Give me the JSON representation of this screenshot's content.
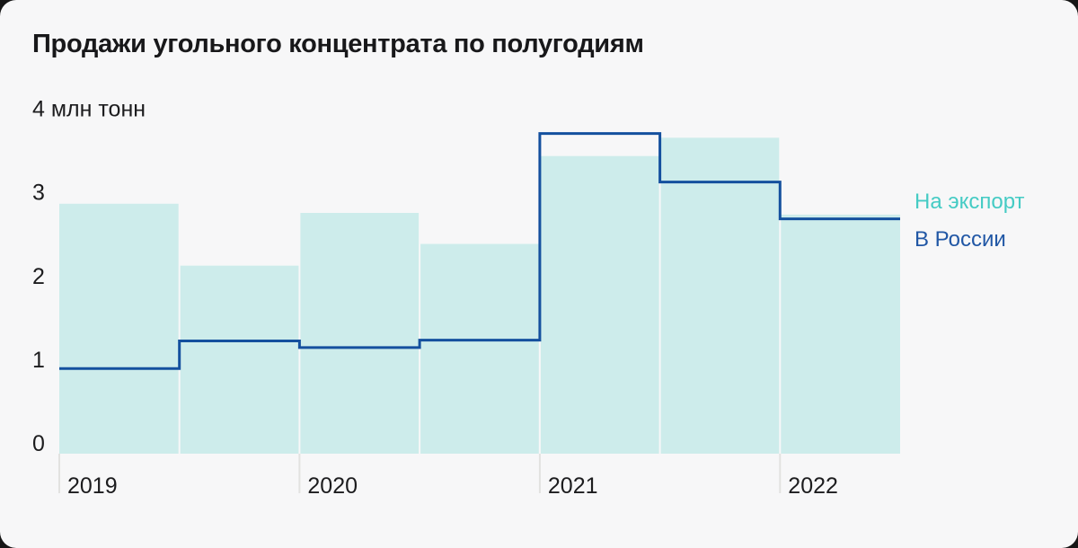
{
  "card": {
    "background": "#f7f7f8"
  },
  "legend": {
    "items": [
      {
        "label": "На экспорт",
        "color": "#45cbc4"
      },
      {
        "label": "В России",
        "color": "#2157a5"
      }
    ]
  },
  "chart_data": {
    "type": "combo",
    "title": "Продажи угольного концентрата по полугодиям",
    "unit_axis_label": "4 млн тонн",
    "ylabel": "млн тонн",
    "ylim": [
      0,
      4
    ],
    "y_ticks": [
      0,
      1,
      2,
      3
    ],
    "x_tick_labels": [
      "2019",
      "2020",
      "2021",
      "2022"
    ],
    "categories": [
      "2019 1-е полугодие",
      "2019 2-е полугодие",
      "2020 1-е полугодие",
      "2020 2-е полугодие",
      "2021 1-е полугодие",
      "2021 2-е полугодие",
      "2022 1-е полугодие"
    ],
    "series": [
      {
        "name": "На экспорт",
        "type": "bar",
        "fill": "#cdeceb",
        "values": [
          2.87,
          2.13,
          2.76,
          2.39,
          3.44,
          3.66,
          2.74
        ]
      },
      {
        "name": "В России",
        "type": "step-line",
        "stroke": "#14509e",
        "values": [
          0.9,
          1.23,
          1.15,
          1.24,
          3.71,
          3.13,
          2.69
        ]
      }
    ],
    "grid": false,
    "legend_position": "right",
    "colors": {
      "text": "#1c1c1e",
      "tick_mark": "#e2e2e0",
      "bar_gap": "#ffffff"
    }
  }
}
